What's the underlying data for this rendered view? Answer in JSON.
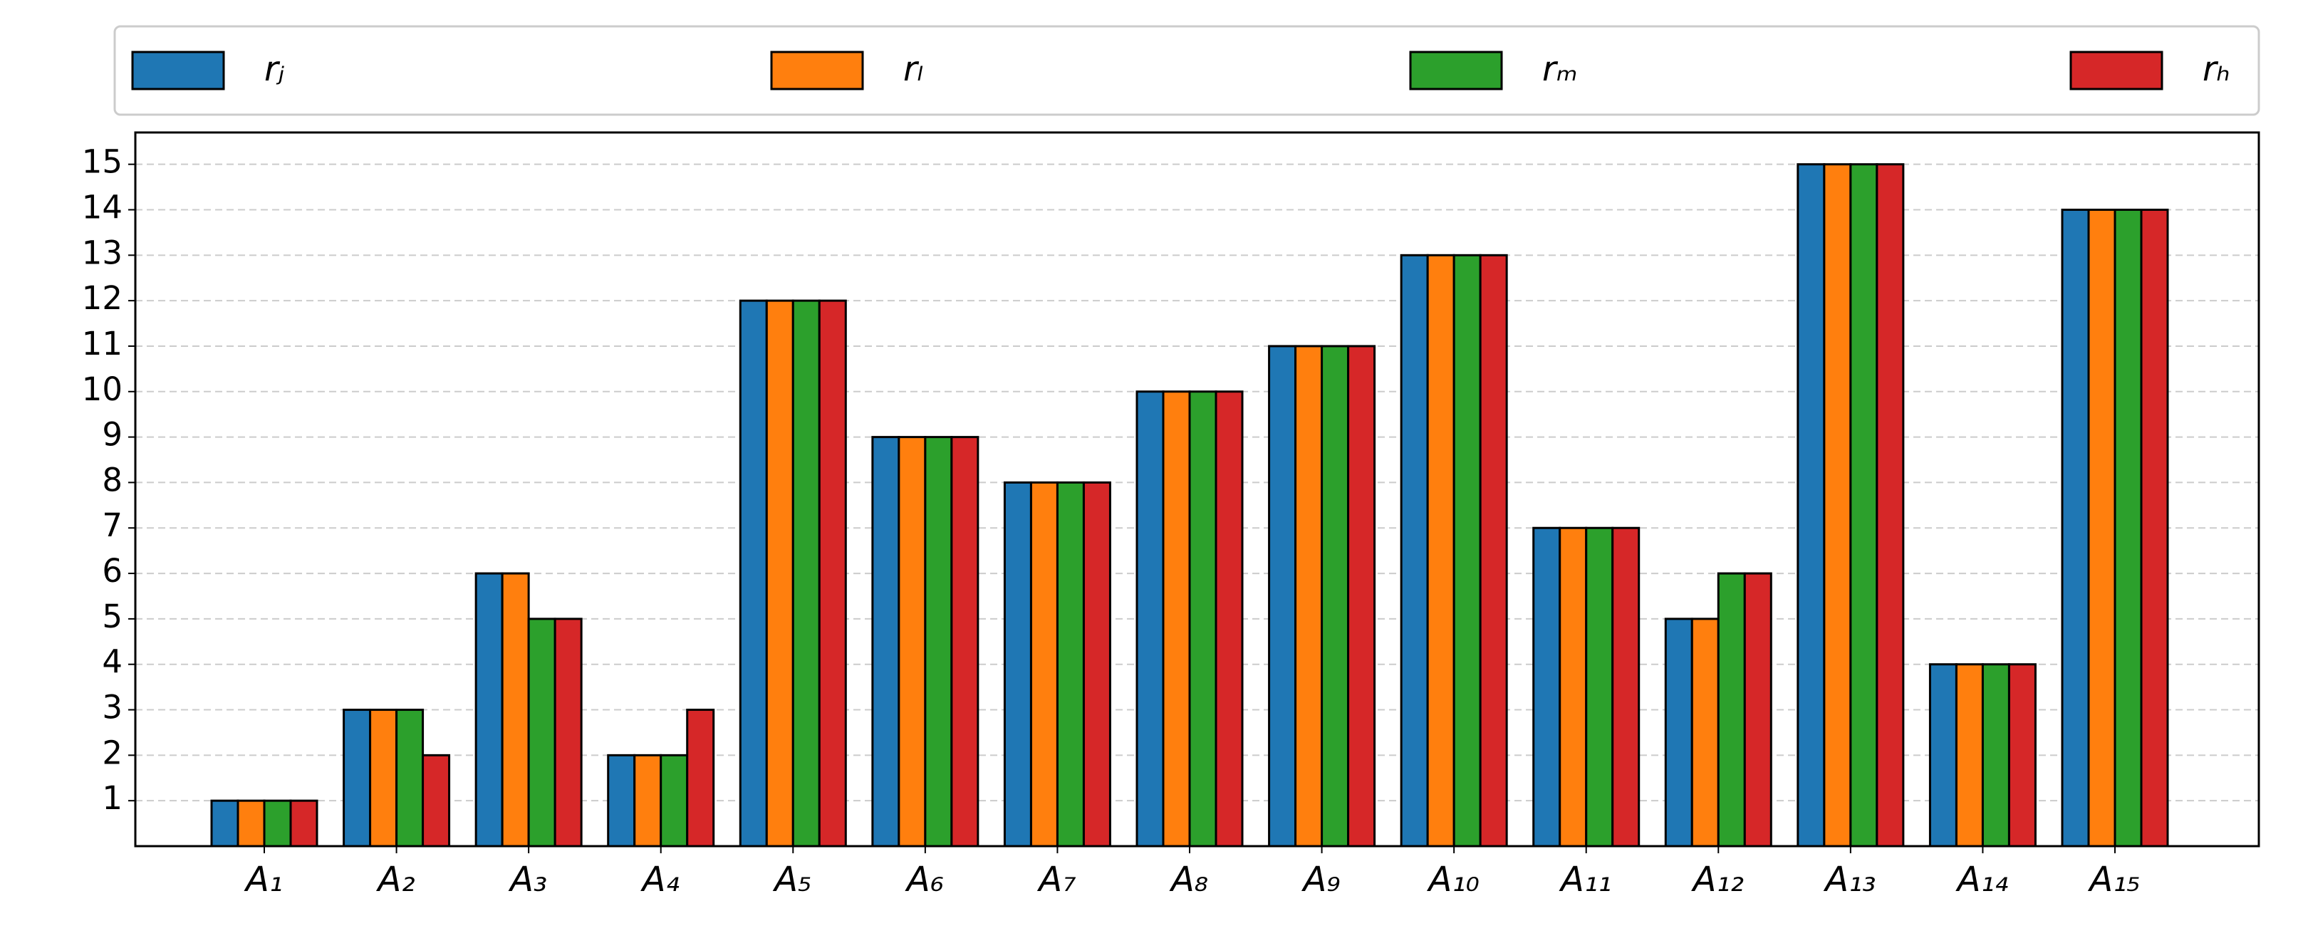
{
  "chart_data": {
    "type": "bar",
    "categories": [
      "A₁",
      "A₂",
      "A₃",
      "A₄",
      "A₅",
      "A₆",
      "A₇",
      "A₈",
      "A₉",
      "A₁₀",
      "A₁₁",
      "A₁₂",
      "A₁₃",
      "A₁₄",
      "A₁₅"
    ],
    "series": [
      {
        "name": "rⱼ",
        "color": "#1f77b4",
        "values": [
          1,
          3,
          6,
          2,
          12,
          9,
          8,
          10,
          11,
          13,
          7,
          5,
          15,
          4,
          14
        ]
      },
      {
        "name": "rₗ",
        "color": "#ff7f0e",
        "values": [
          1,
          3,
          6,
          2,
          12,
          9,
          8,
          10,
          11,
          13,
          7,
          5,
          15,
          4,
          14
        ]
      },
      {
        "name": "rₘ",
        "color": "#2ca02c",
        "values": [
          1,
          3,
          5,
          2,
          12,
          9,
          8,
          10,
          11,
          13,
          7,
          6,
          15,
          4,
          14
        ]
      },
      {
        "name": "rₕ",
        "color": "#d62728",
        "values": [
          1,
          2,
          5,
          3,
          12,
          9,
          8,
          10,
          11,
          13,
          7,
          6,
          15,
          4,
          14
        ]
      }
    ],
    "ylim": [
      0,
      15.7
    ],
    "yticks": [
      1,
      2,
      3,
      4,
      5,
      6,
      7,
      8,
      9,
      10,
      11,
      12,
      13,
      14,
      15
    ],
    "grid": true,
    "legend": "top"
  }
}
